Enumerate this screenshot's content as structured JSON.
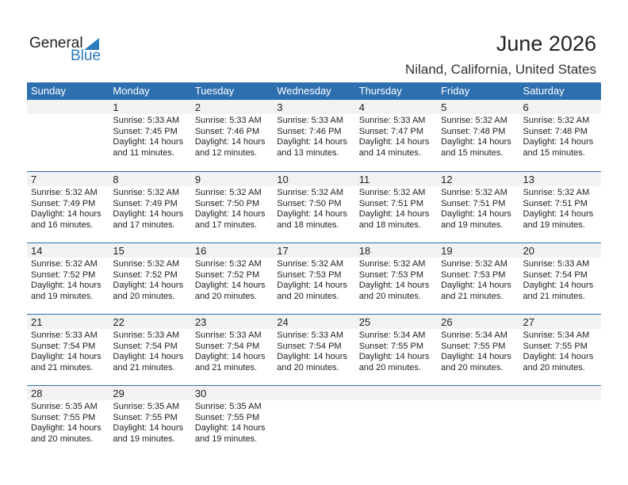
{
  "logo": {
    "general": "General",
    "blue": "Blue"
  },
  "title": "June 2026",
  "location": "Niland, California, United States",
  "days": [
    "Sunday",
    "Monday",
    "Tuesday",
    "Wednesday",
    "Thursday",
    "Friday",
    "Saturday"
  ],
  "weeks": [
    [
      null,
      {
        "day": "1",
        "sunrise": "Sunrise: 5:33 AM",
        "sunset": "Sunset: 7:45 PM",
        "daylight": "Daylight: 14 hours",
        "minutes": "and 11 minutes."
      },
      {
        "day": "2",
        "sunrise": "Sunrise: 5:33 AM",
        "sunset": "Sunset: 7:46 PM",
        "daylight": "Daylight: 14 hours",
        "minutes": "and 12 minutes."
      },
      {
        "day": "3",
        "sunrise": "Sunrise: 5:33 AM",
        "sunset": "Sunset: 7:46 PM",
        "daylight": "Daylight: 14 hours",
        "minutes": "and 13 minutes."
      },
      {
        "day": "4",
        "sunrise": "Sunrise: 5:33 AM",
        "sunset": "Sunset: 7:47 PM",
        "daylight": "Daylight: 14 hours",
        "minutes": "and 14 minutes."
      },
      {
        "day": "5",
        "sunrise": "Sunrise: 5:32 AM",
        "sunset": "Sunset: 7:48 PM",
        "daylight": "Daylight: 14 hours",
        "minutes": "and 15 minutes."
      },
      {
        "day": "6",
        "sunrise": "Sunrise: 5:32 AM",
        "sunset": "Sunset: 7:48 PM",
        "daylight": "Daylight: 14 hours",
        "minutes": "and 15 minutes."
      }
    ],
    [
      {
        "day": "7",
        "sunrise": "Sunrise: 5:32 AM",
        "sunset": "Sunset: 7:49 PM",
        "daylight": "Daylight: 14 hours",
        "minutes": "and 16 minutes."
      },
      {
        "day": "8",
        "sunrise": "Sunrise: 5:32 AM",
        "sunset": "Sunset: 7:49 PM",
        "daylight": "Daylight: 14 hours",
        "minutes": "and 17 minutes."
      },
      {
        "day": "9",
        "sunrise": "Sunrise: 5:32 AM",
        "sunset": "Sunset: 7:50 PM",
        "daylight": "Daylight: 14 hours",
        "minutes": "and 17 minutes."
      },
      {
        "day": "10",
        "sunrise": "Sunrise: 5:32 AM",
        "sunset": "Sunset: 7:50 PM",
        "daylight": "Daylight: 14 hours",
        "minutes": "and 18 minutes."
      },
      {
        "day": "11",
        "sunrise": "Sunrise: 5:32 AM",
        "sunset": "Sunset: 7:51 PM",
        "daylight": "Daylight: 14 hours",
        "minutes": "and 18 minutes."
      },
      {
        "day": "12",
        "sunrise": "Sunrise: 5:32 AM",
        "sunset": "Sunset: 7:51 PM",
        "daylight": "Daylight: 14 hours",
        "minutes": "and 19 minutes."
      },
      {
        "day": "13",
        "sunrise": "Sunrise: 5:32 AM",
        "sunset": "Sunset: 7:51 PM",
        "daylight": "Daylight: 14 hours",
        "minutes": "and 19 minutes."
      }
    ],
    [
      {
        "day": "14",
        "sunrise": "Sunrise: 5:32 AM",
        "sunset": "Sunset: 7:52 PM",
        "daylight": "Daylight: 14 hours",
        "minutes": "and 19 minutes."
      },
      {
        "day": "15",
        "sunrise": "Sunrise: 5:32 AM",
        "sunset": "Sunset: 7:52 PM",
        "daylight": "Daylight: 14 hours",
        "minutes": "and 20 minutes."
      },
      {
        "day": "16",
        "sunrise": "Sunrise: 5:32 AM",
        "sunset": "Sunset: 7:52 PM",
        "daylight": "Daylight: 14 hours",
        "minutes": "and 20 minutes."
      },
      {
        "day": "17",
        "sunrise": "Sunrise: 5:32 AM",
        "sunset": "Sunset: 7:53 PM",
        "daylight": "Daylight: 14 hours",
        "minutes": "and 20 minutes."
      },
      {
        "day": "18",
        "sunrise": "Sunrise: 5:32 AM",
        "sunset": "Sunset: 7:53 PM",
        "daylight": "Daylight: 14 hours",
        "minutes": "and 20 minutes."
      },
      {
        "day": "19",
        "sunrise": "Sunrise: 5:32 AM",
        "sunset": "Sunset: 7:53 PM",
        "daylight": "Daylight: 14 hours",
        "minutes": "and 21 minutes."
      },
      {
        "day": "20",
        "sunrise": "Sunrise: 5:33 AM",
        "sunset": "Sunset: 7:54 PM",
        "daylight": "Daylight: 14 hours",
        "minutes": "and 21 minutes."
      }
    ],
    [
      {
        "day": "21",
        "sunrise": "Sunrise: 5:33 AM",
        "sunset": "Sunset: 7:54 PM",
        "daylight": "Daylight: 14 hours",
        "minutes": "and 21 minutes."
      },
      {
        "day": "22",
        "sunrise": "Sunrise: 5:33 AM",
        "sunset": "Sunset: 7:54 PM",
        "daylight": "Daylight: 14 hours",
        "minutes": "and 21 minutes."
      },
      {
        "day": "23",
        "sunrise": "Sunrise: 5:33 AM",
        "sunset": "Sunset: 7:54 PM",
        "daylight": "Daylight: 14 hours",
        "minutes": "and 21 minutes."
      },
      {
        "day": "24",
        "sunrise": "Sunrise: 5:33 AM",
        "sunset": "Sunset: 7:54 PM",
        "daylight": "Daylight: 14 hours",
        "minutes": "and 20 minutes."
      },
      {
        "day": "25",
        "sunrise": "Sunrise: 5:34 AM",
        "sunset": "Sunset: 7:55 PM",
        "daylight": "Daylight: 14 hours",
        "minutes": "and 20 minutes."
      },
      {
        "day": "26",
        "sunrise": "Sunrise: 5:34 AM",
        "sunset": "Sunset: 7:55 PM",
        "daylight": "Daylight: 14 hours",
        "minutes": "and 20 minutes."
      },
      {
        "day": "27",
        "sunrise": "Sunrise: 5:34 AM",
        "sunset": "Sunset: 7:55 PM",
        "daylight": "Daylight: 14 hours",
        "minutes": "and 20 minutes."
      }
    ],
    [
      {
        "day": "28",
        "sunrise": "Sunrise: 5:35 AM",
        "sunset": "Sunset: 7:55 PM",
        "daylight": "Daylight: 14 hours",
        "minutes": "and 20 minutes."
      },
      {
        "day": "29",
        "sunrise": "Sunrise: 5:35 AM",
        "sunset": "Sunset: 7:55 PM",
        "daylight": "Daylight: 14 hours",
        "minutes": "and 19 minutes."
      },
      {
        "day": "30",
        "sunrise": "Sunrise: 5:35 AM",
        "sunset": "Sunset: 7:55 PM",
        "daylight": "Daylight: 14 hours",
        "minutes": "and 19 minutes."
      },
      null,
      null,
      null,
      null
    ]
  ],
  "colors": {
    "header": "#2e6fb0",
    "brand_blue": "#2a7ac0",
    "day_band": "#f2f2f2"
  }
}
